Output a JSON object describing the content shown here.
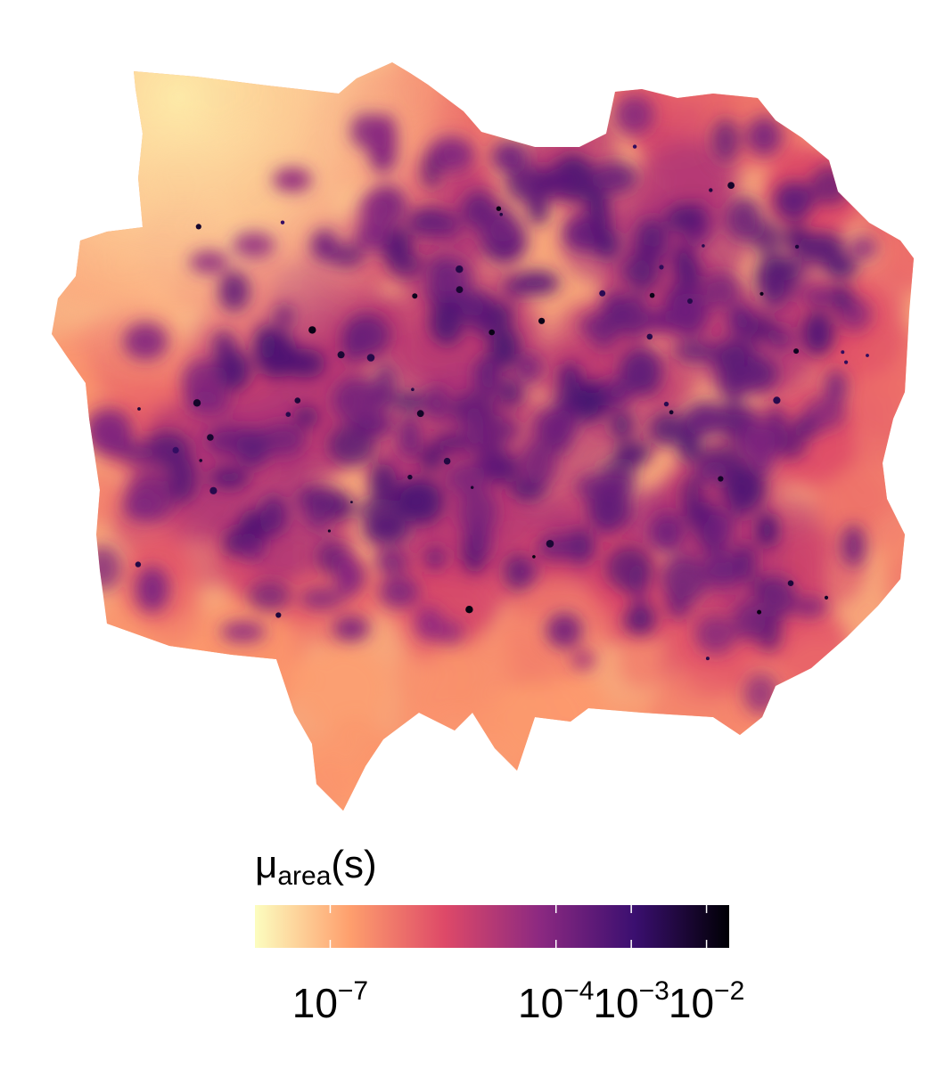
{
  "chart_data": {
    "type": "heatmap",
    "title": "",
    "legend": {
      "title": "μarea(s)",
      "title_symbol": "μ",
      "title_subscript": "area",
      "title_argument": "(s)",
      "placement": "bottom",
      "scale": "log10",
      "range": [
        1e-08,
        0.02
      ],
      "palette": [
        "#fcfdbf",
        "#fe9f6d",
        "#de4968",
        "#8c2981",
        "#3b0f70",
        "#000004"
      ],
      "ticks": [
        {
          "value": 1e-07,
          "base": "10",
          "exponent": "−7"
        },
        {
          "value": 0.0001,
          "base": "10",
          "exponent": "−4"
        },
        {
          "value": 0.001,
          "base": "10",
          "exponent": "−3"
        },
        {
          "value": 0.01,
          "base": "10",
          "exponent": "−2"
        }
      ]
    },
    "surface": {
      "background_level": 1.2e-07,
      "high_density_region": "north-east and central",
      "low_density_region": "north-west"
    }
  }
}
